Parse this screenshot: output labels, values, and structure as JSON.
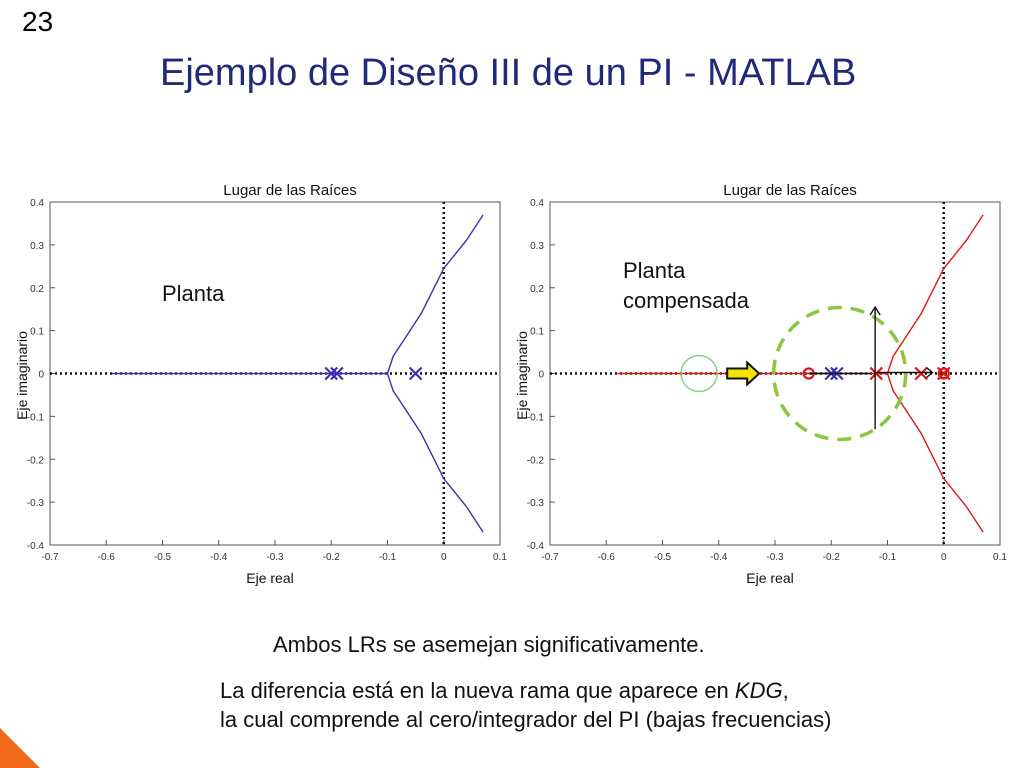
{
  "slide": {
    "number": "23",
    "title": "Ejemplo de Diseño III de un PI  -  MATLAB",
    "summary": "Ambos LRs se asemejan significativamente.",
    "diff_line_1_prefix": "La diferencia está en la nueva rama que aparece en ",
    "diff_line_1_em": "KDG",
    "diff_line_1_suffix": ",",
    "diff_line_2": "la cual comprende al cero/integrador del PI (bajas frecuencias)"
  },
  "colors": {
    "title": "#1f2a7a",
    "left_locus": "#3b2fb0",
    "right_locus": "#e01616",
    "right_pole_marker": "#3b2fb0",
    "dashed_circle": "#8cc63f",
    "small_circle": "#7fd07f",
    "arrow_fill": "#f2e600",
    "corner_accent": "#f26a1b"
  },
  "chart_data": [
    {
      "type": "scatter",
      "title": "Lugar de las Raíces",
      "xlabel": "Eje real",
      "ylabel": "Eje imaginario",
      "xlim": [
        -0.7,
        0.1
      ],
      "ylim": [
        -0.4,
        0.4
      ],
      "xticks": [
        "-0.7",
        "-0.6",
        "-0.5",
        "-0.4",
        "-0.3",
        "-0.2",
        "-0.1",
        "0",
        "0.1"
      ],
      "yticks": [
        "0.4",
        "0.3",
        "0.2",
        "0.1",
        "0",
        "-0.1",
        "-0.2",
        "-0.3",
        "-0.4"
      ],
      "annotation": [
        "Planta"
      ],
      "poles": [
        [
          -0.2,
          0
        ],
        [
          -0.19,
          0
        ],
        [
          -0.05,
          0
        ]
      ],
      "zeros": [],
      "series": [
        {
          "values": [
            [
              -0.59,
              0
            ],
            [
              -0.1,
              0
            ]
          ]
        },
        {
          "values": [
            [
              -0.1,
              0
            ],
            [
              -0.09,
              0.04
            ],
            [
              -0.07,
              0.08
            ],
            [
              -0.04,
              0.14
            ],
            [
              0.0,
              0.245
            ],
            [
              0.04,
              0.31
            ],
            [
              0.07,
              0.37
            ]
          ]
        },
        {
          "values": [
            [
              -0.1,
              0
            ],
            [
              -0.09,
              -0.04
            ],
            [
              -0.07,
              -0.08
            ],
            [
              -0.04,
              -0.14
            ],
            [
              0.0,
              -0.245
            ],
            [
              0.04,
              -0.31
            ],
            [
              0.07,
              -0.37
            ]
          ]
        }
      ]
    },
    {
      "type": "scatter",
      "title": "Lugar de las Raíces",
      "xlabel": "Eje real",
      "ylabel": "Eje imaginario",
      "xlim": [
        -0.7,
        0.1
      ],
      "ylim": [
        -0.4,
        0.4
      ],
      "xticks": [
        "-0.7",
        "-0.6",
        "-0.5",
        "-0.4",
        "-0.3",
        "-0.2",
        "-0.1",
        "0",
        "0.1"
      ],
      "yticks": [
        "0.4",
        "0.3",
        "0.2",
        "0.1",
        "0",
        "-0.1",
        "-0.2",
        "-0.3",
        "-0.4"
      ],
      "annotation": [
        "Planta",
        "compensada"
      ],
      "poles": [
        [
          -0.2,
          0
        ],
        [
          -0.19,
          0
        ],
        [
          -0.12,
          0
        ],
        [
          -0.04,
          0
        ],
        [
          0.0,
          0
        ]
      ],
      "zeros": [
        [
          -0.24,
          0
        ],
        [
          0.0,
          0
        ]
      ],
      "series": [
        {
          "values": [
            [
              -0.58,
              0
            ],
            [
              -0.1,
              0
            ]
          ]
        },
        {
          "values": [
            [
              -0.1,
              0
            ],
            [
              -0.09,
              0.04
            ],
            [
              -0.07,
              0.08
            ],
            [
              -0.04,
              0.14
            ],
            [
              0.0,
              0.245
            ],
            [
              0.04,
              0.31
            ],
            [
              0.07,
              0.37
            ]
          ]
        },
        {
          "values": [
            [
              -0.1,
              0
            ],
            [
              -0.09,
              -0.04
            ],
            [
              -0.07,
              -0.08
            ],
            [
              -0.04,
              -0.14
            ],
            [
              0.0,
              -0.245
            ],
            [
              0.04,
              -0.31
            ],
            [
              0.07,
              -0.37
            ]
          ]
        }
      ]
    }
  ]
}
